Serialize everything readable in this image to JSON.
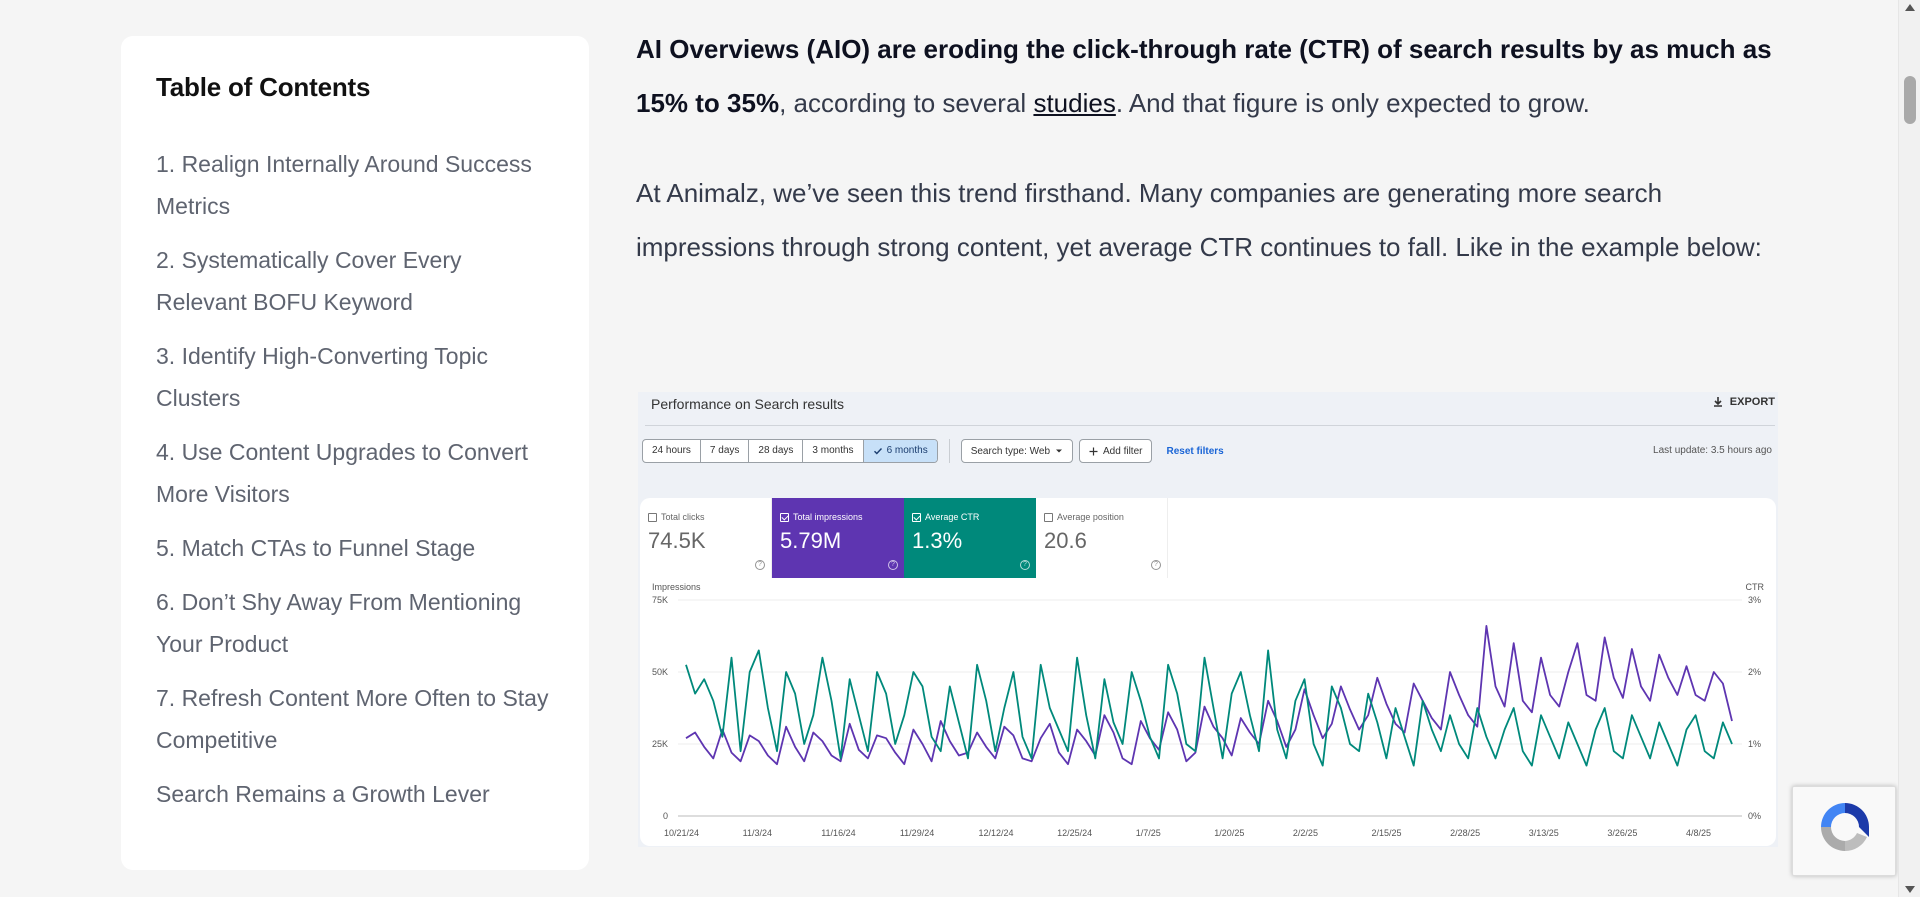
{
  "toc": {
    "title": "Table of Contents",
    "items": [
      {
        "label": "1. Realign Internally Around Success Metrics"
      },
      {
        "label": "2. Systematically Cover Every Relevant BOFU Keyword"
      },
      {
        "label": "3. Identify High-Converting Topic Clusters"
      },
      {
        "label": "4. Use Content Upgrades to Convert More Visitors"
      },
      {
        "label": "5. Match CTAs to Funnel Stage"
      },
      {
        "label": "6. Don’t Shy Away From Mentioning Your Product"
      },
      {
        "label": "7. Refresh Content More Often to Stay Competitive"
      },
      {
        "label": "Search Remains a Growth Lever"
      }
    ]
  },
  "article": {
    "p1_bold": "AI Overviews (AIO) are eroding the click-through rate (CTR) of search results by as much as 15% to 35%",
    "p1_mid": ", according to several ",
    "p1_link": "studies",
    "p1_end": ". And that figure is only expected to grow.",
    "p2": "At Animalz, we’ve seen this trend firsthand. Many companies are generating more search impressions through strong content, yet average CTR continues to fall. Like in the example below:"
  },
  "figure": {
    "title": "Performance on Search results",
    "export_label": "EXPORT",
    "date_ranges": [
      "24 hours",
      "7 days",
      "28 days",
      "3 months",
      "6 months"
    ],
    "active_range": "6 months",
    "search_type": "Search type: Web",
    "add_filter": "Add filter",
    "reset_filters": "Reset filters",
    "last_update": "Last update: 3.5 hours ago",
    "metrics": {
      "clicks": {
        "label": "Total clicks",
        "value": "74.5K"
      },
      "impressions": {
        "label": "Total impressions",
        "value": "5.79M"
      },
      "ctr": {
        "label": "Average CTR",
        "value": "1.3%"
      },
      "position": {
        "label": "Average position",
        "value": "20.6"
      }
    },
    "colors": {
      "impressions": "#5e35b1",
      "ctr": "#00897b",
      "active_range_bg": "#c7e0f8",
      "link": "#1a65d6"
    }
  },
  "chart_data": {
    "type": "line",
    "left_axis_label": "Impressions",
    "right_axis_label": "CTR",
    "left_ticks": [
      "75K",
      "50K",
      "25K",
      "0"
    ],
    "right_ticks": [
      "3%",
      "2%",
      "1%",
      "0%"
    ],
    "ylim_left": [
      0,
      75000
    ],
    "ylim_right": [
      0,
      3
    ],
    "x_labels": [
      "10/21/24",
      "11/3/24",
      "11/16/24",
      "11/29/24",
      "12/12/24",
      "12/25/24",
      "1/7/25",
      "1/20/25",
      "2/2/25",
      "2/15/25",
      "2/28/25",
      "3/13/25",
      "3/26/25",
      "4/8/25"
    ],
    "series": [
      {
        "name": "Total impressions",
        "values": [
          27000,
          29000,
          24000,
          20000,
          30000,
          22000,
          19000,
          28000,
          26000,
          21000,
          18000,
          31000,
          24000,
          19000,
          29000,
          26000,
          21000,
          19000,
          32000,
          23000,
          20000,
          28000,
          27000,
          22000,
          18000,
          30000,
          25000,
          19000,
          33000,
          26000,
          21000,
          22000,
          29000,
          24000,
          20000,
          31000,
          28000,
          20000,
          19000,
          27000,
          32000,
          22000,
          18000,
          30000,
          26000,
          21000,
          35000,
          29000,
          20000,
          18000,
          33000,
          27000,
          23000,
          36000,
          30000,
          19000,
          22000,
          38000,
          31000,
          27000,
          21000,
          34000,
          29000,
          25000,
          40000,
          33000,
          24000,
          30000,
          44000,
          35000,
          27000,
          32000,
          45000,
          37000,
          30000,
          35000,
          48000,
          39000,
          32000,
          29000,
          46000,
          40000,
          34000,
          30000,
          50000,
          42000,
          35000,
          31000,
          66000,
          45000,
          38000,
          60000,
          40000,
          36000,
          55000,
          42000,
          38000,
          50000,
          60000,
          42000,
          40000,
          62000,
          48000,
          41000,
          58000,
          45000,
          40000,
          56000,
          48000,
          42000,
          52000,
          42000,
          40000,
          50000,
          46000,
          33000
        ]
      },
      {
        "name": "Average CTR",
        "values": [
          2.1,
          1.7,
          1.9,
          1.6,
          1.1,
          2.2,
          0.9,
          2.0,
          2.3,
          1.5,
          0.9,
          2.0,
          1.7,
          1.0,
          1.4,
          2.2,
          1.6,
          0.8,
          1.9,
          1.4,
          0.9,
          2.0,
          1.7,
          1.0,
          1.4,
          2.0,
          1.8,
          1.1,
          0.9,
          1.8,
          1.3,
          0.8,
          2.1,
          1.6,
          0.9,
          1.5,
          2.0,
          1.1,
          0.8,
          2.1,
          1.5,
          1.2,
          0.9,
          2.2,
          1.4,
          0.8,
          1.9,
          1.3,
          1.0,
          2.0,
          1.6,
          1.1,
          0.8,
          2.1,
          1.7,
          1.0,
          0.9,
          2.2,
          1.5,
          0.8,
          1.7,
          2.0,
          1.4,
          0.9,
          2.3,
          1.2,
          0.8,
          1.6,
          1.9,
          1.0,
          0.7,
          1.8,
          1.5,
          1.0,
          0.9,
          1.7,
          1.3,
          0.8,
          1.5,
          1.1,
          0.7,
          1.6,
          1.2,
          0.9,
          1.4,
          1.0,
          0.8,
          1.5,
          1.1,
          0.8,
          1.2,
          1.5,
          0.9,
          0.7,
          1.4,
          1.1,
          0.8,
          1.3,
          1.0,
          0.7,
          1.2,
          1.5,
          0.9,
          0.8,
          1.4,
          1.1,
          0.8,
          1.3,
          1.0,
          0.7,
          1.2,
          1.4,
          0.9,
          0.8,
          1.3,
          1.0
        ]
      }
    ]
  }
}
